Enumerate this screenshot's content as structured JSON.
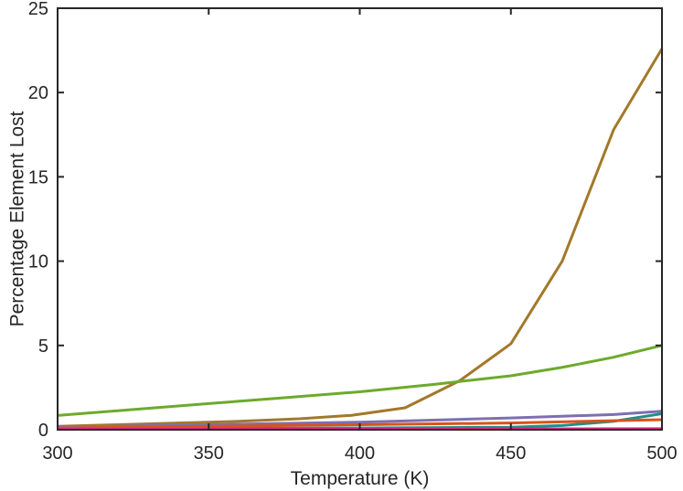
{
  "chart_data": {
    "type": "line",
    "title": "",
    "xlabel": "Temperature (K)",
    "ylabel": "Percentage Element Lost",
    "xlim": [
      300,
      500
    ],
    "ylim": [
      0,
      25
    ],
    "xticks": [
      300,
      350,
      400,
      450,
      500
    ],
    "yticks": [
      0,
      5,
      10,
      15,
      20,
      25
    ],
    "grid": false,
    "legend": false,
    "series": [
      {
        "color": "#A2792A",
        "x": [
          300,
          320,
          340,
          360,
          380,
          397,
          415,
          433,
          450,
          467,
          484,
          500
        ],
        "y": [
          0.2,
          0.3,
          0.4,
          0.5,
          0.65,
          0.85,
          1.3,
          2.9,
          5.1,
          10.0,
          17.8,
          22.6
        ]
      },
      {
        "color": "#6DAA2C",
        "x": [
          300,
          325,
          350,
          375,
          400,
          425,
          450,
          467,
          484,
          500
        ],
        "y": [
          0.85,
          1.2,
          1.55,
          1.9,
          2.25,
          2.7,
          3.2,
          3.7,
          4.3,
          5.0
        ]
      },
      {
        "color": "#7E6FB3",
        "x": [
          300,
          350,
          400,
          450,
          484,
          500
        ],
        "y": [
          0.15,
          0.3,
          0.45,
          0.7,
          0.9,
          1.1
        ]
      },
      {
        "color": "#1F8F8A",
        "x": [
          300,
          350,
          400,
          450,
          467,
          484,
          500
        ],
        "y": [
          0.05,
          0.08,
          0.1,
          0.15,
          0.25,
          0.5,
          0.95
        ]
      },
      {
        "color": "#D95319",
        "x": [
          300,
          350,
          400,
          450,
          500
        ],
        "y": [
          0.1,
          0.2,
          0.3,
          0.4,
          0.6
        ]
      },
      {
        "color": "#E0218A",
        "x": [
          300,
          350,
          400,
          450,
          500
        ],
        "y": [
          0.02,
          0.03,
          0.04,
          0.05,
          0.06
        ]
      }
    ]
  }
}
